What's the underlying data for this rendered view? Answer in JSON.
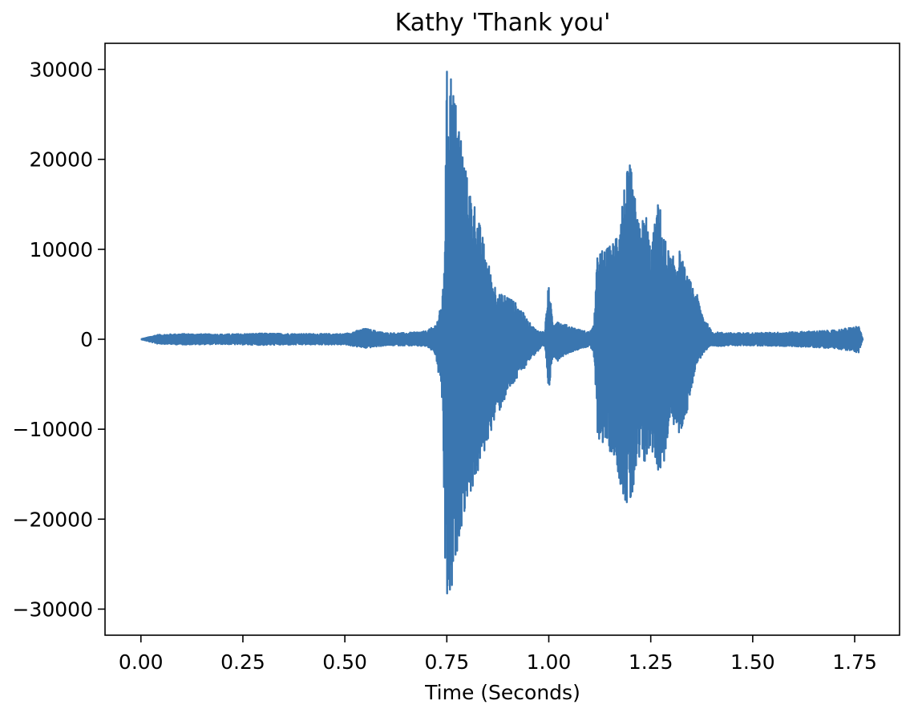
{
  "chart_data": {
    "type": "line",
    "title": "Kathy 'Thank you'",
    "xlabel": "Time (Seconds)",
    "ylabel": "",
    "xlim": [
      -0.088,
      1.86
    ],
    "ylim": [
      -32900,
      32900
    ],
    "xticks": [
      0.0,
      0.25,
      0.5,
      0.75,
      1.0,
      1.25,
      1.5,
      1.75
    ],
    "xtick_labels": [
      "0.00",
      "0.25",
      "0.50",
      "0.75",
      "1.00",
      "1.25",
      "1.50",
      "1.75"
    ],
    "yticks": [
      -30000,
      -20000,
      -10000,
      0,
      10000,
      20000,
      30000
    ],
    "ytick_labels": [
      "−30000",
      "−20000",
      "−10000",
      "0",
      "10000",
      "20000",
      "30000"
    ],
    "grid": false,
    "line_color": "#3a76b0",
    "series": [
      {
        "name": "",
        "envelope": {
          "t": [
            0.0,
            0.04,
            0.1,
            0.2,
            0.3,
            0.4,
            0.5,
            0.55,
            0.6,
            0.65,
            0.7,
            0.72,
            0.73,
            0.74,
            0.745,
            0.75,
            0.76,
            0.77,
            0.78,
            0.8,
            0.82,
            0.84,
            0.86,
            0.88,
            0.9,
            0.93,
            0.95,
            0.97,
            0.99,
            1.0,
            1.01,
            1.02,
            1.03,
            1.05,
            1.08,
            1.1,
            1.11,
            1.12,
            1.14,
            1.16,
            1.18,
            1.19,
            1.2,
            1.22,
            1.24,
            1.25,
            1.27,
            1.28,
            1.3,
            1.32,
            1.34,
            1.36,
            1.38,
            1.4,
            1.45,
            1.5,
            1.6,
            1.7,
            1.74,
            1.76,
            1.77
          ],
          "upper": [
            0,
            500,
            600,
            550,
            650,
            600,
            600,
            1200,
            700,
            700,
            900,
            1500,
            2500,
            5000,
            12000,
            30000,
            30500,
            27000,
            25000,
            18000,
            15000,
            11000,
            7000,
            5000,
            5000,
            3500,
            2000,
            1000,
            800,
            6500,
            1500,
            2500,
            1800,
            1500,
            1000,
            800,
            1500,
            10000,
            10000,
            11000,
            16000,
            18500,
            19500,
            13000,
            14000,
            10000,
            16000,
            12000,
            9000,
            10000,
            7000,
            5500,
            2500,
            800,
            700,
            700,
            800,
            1000,
            1300,
            1500,
            0
          ],
          "lower": [
            0,
            -500,
            -600,
            -550,
            -650,
            -600,
            -600,
            -1000,
            -700,
            -700,
            -800,
            -1500,
            -4000,
            -8000,
            -25000,
            -30000,
            -30000,
            -26000,
            -22000,
            -18000,
            -16000,
            -13000,
            -10000,
            -8000,
            -6000,
            -4000,
            -2500,
            -1500,
            -800,
            -6000,
            -1800,
            -2500,
            -2000,
            -1500,
            -1000,
            -800,
            -1500,
            -11000,
            -12000,
            -13000,
            -17000,
            -18500,
            -19000,
            -14500,
            -14000,
            -12000,
            -15000,
            -14500,
            -9000,
            -11000,
            -8000,
            -3000,
            -1500,
            -800,
            -700,
            -700,
            -800,
            -1000,
            -1300,
            -1500,
            0
          ]
        }
      }
    ]
  }
}
